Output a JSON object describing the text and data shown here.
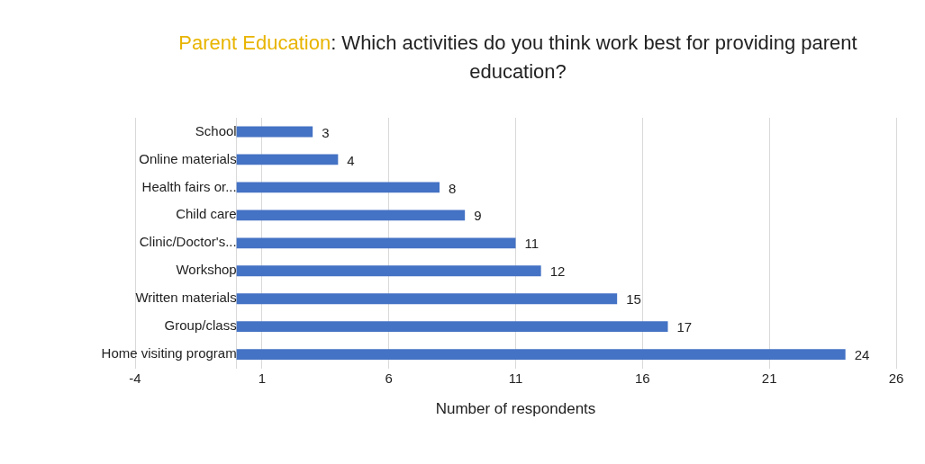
{
  "chart_data": {
    "type": "bar",
    "orientation": "horizontal",
    "title": "Parent Education: Which activities do you think work best for providing parent education?",
    "xlabel": "Number of respondents",
    "categories": [
      "School",
      "Online materials",
      "Health fairs or...",
      "Child care",
      "Clinic/Doctor's...",
      "Workshop",
      "Written materials",
      "Group/class",
      "Home visiting program"
    ],
    "values": [
      3,
      4,
      8,
      9,
      11,
      12,
      15,
      17,
      24
    ],
    "color": "#4472c4",
    "xlim": [
      -4,
      26
    ],
    "xticks": [
      -4,
      1,
      6,
      11,
      16,
      21,
      26
    ],
    "grid": "x",
    "data_labels": true
  }
}
